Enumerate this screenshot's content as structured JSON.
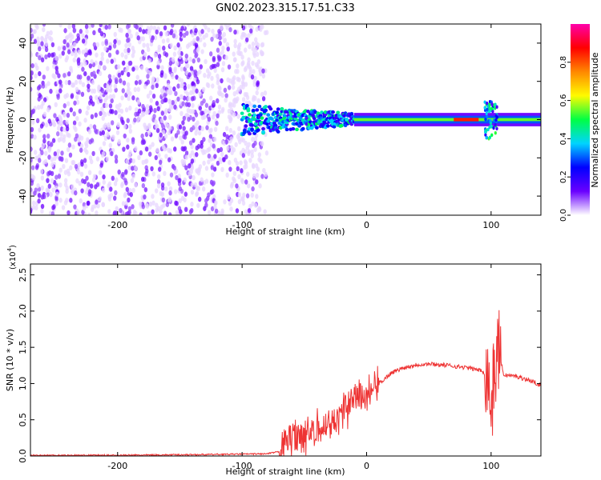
{
  "title": "GN02.2023.315.17.51.C33",
  "chart_data": [
    {
      "type": "heatmap",
      "xlabel": "Height of straight line (km)",
      "ylabel": "Frequency (Hz)",
      "xlim": [
        -270,
        140
      ],
      "ylim": [
        -50,
        50
      ],
      "xticks": [
        -200,
        -100,
        0,
        100
      ],
      "yticks": [
        -40,
        -20,
        0,
        20,
        40
      ],
      "xtick_labels": [
        "-200",
        "-100",
        "0",
        "100"
      ],
      "ytick_labels": [
        "-40",
        "-20",
        "0",
        "20",
        "40"
      ],
      "colorbar": {
        "label": "Normalized spectral amplitude",
        "range": [
          0,
          1
        ],
        "ticks": [
          0,
          0.2,
          0.4,
          0.6,
          0.8
        ],
        "tick_labels": [
          "0.0",
          "0.2",
          "0.4",
          "0.6",
          "0.8"
        ],
        "colors": [
          "#ffffff",
          "#6a00ff",
          "#0000ff",
          "#00d4ff",
          "#00ff44",
          "#fffb00",
          "#ff8800",
          "#ff0000",
          "#ff00aa"
        ]
      },
      "regions": [
        {
          "name": "noise",
          "x_range": [
            -270,
            -100
          ],
          "freq_range": [
            -50,
            50
          ],
          "amplitude": 0.05
        },
        {
          "name": "transition",
          "x_range": [
            -100,
            -10
          ],
          "freq_center": 0,
          "freq_halfwidth_start": 8,
          "freq_halfwidth_end": 3,
          "amplitude": 0.35
        },
        {
          "name": "tone",
          "x_range": [
            -10,
            140
          ],
          "freq_center": 0,
          "freq_halfwidth": 2,
          "amplitude": 0.55
        },
        {
          "name": "peak",
          "x_range": [
            70,
            90
          ],
          "freq_center": 0,
          "amplitude": 0.85
        },
        {
          "name": "burst",
          "x_range": [
            95,
            105
          ],
          "freq_range": [
            -10,
            10
          ],
          "amplitude": 0.4
        }
      ]
    },
    {
      "type": "line",
      "xlabel": "Height of straight line (km)",
      "ylabel": "SNR (10 * v/v)",
      "scale_label": "(x10",
      "scale_exponent": "4",
      "xlim": [
        -270,
        140
      ],
      "ylim": [
        0,
        2.65
      ],
      "xticks": [
        -200,
        -100,
        0,
        100
      ],
      "yticks": [
        0,
        0.5,
        1.0,
        1.5,
        2.0,
        2.5
      ],
      "xtick_labels": [
        "-200",
        "-100",
        "0",
        "100"
      ],
      "ytick_labels": [
        "0.0",
        "0.5",
        "1.0",
        "1.5",
        "2.0",
        "2.5"
      ],
      "series": [
        {
          "color": "#ee3333",
          "x": [
            -270,
            -200,
            -130,
            -80,
            -70,
            -65,
            -60,
            -50,
            -40,
            -30,
            -20,
            -10,
            0,
            10,
            20,
            30,
            40,
            50,
            60,
            70,
            80,
            90,
            95,
            98,
            100,
            103,
            106,
            110,
            120,
            130,
            140
          ],
          "y": [
            0.01,
            0.01,
            0.02,
            0.03,
            0.06,
            0.2,
            0.3,
            0.3,
            0.35,
            0.45,
            0.6,
            0.75,
            0.85,
            1.0,
            1.15,
            1.22,
            1.26,
            1.27,
            1.26,
            1.24,
            1.22,
            1.19,
            1.15,
            1.1,
            0.6,
            1.2,
            1.5,
            1.12,
            1.1,
            1.05,
            0.98
          ]
        }
      ]
    }
  ]
}
